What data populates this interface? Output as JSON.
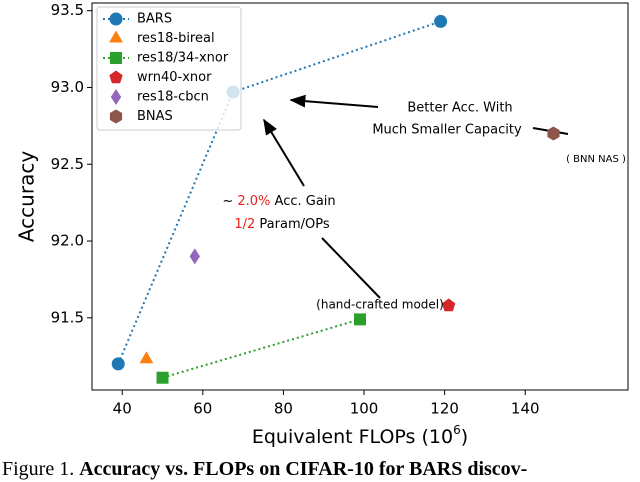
{
  "chart_data": {
    "type": "scatter",
    "x_label": [
      "Equivalent FLOPs (10",
      "6",
      ")"
    ],
    "y_label": "Accuracy",
    "xlim": [
      32.5,
      165.5
    ],
    "ylim": [
      91.03,
      93.55
    ],
    "xticks": [
      40,
      60,
      80,
      100,
      120,
      140
    ],
    "yticks": [
      91.5,
      {
        "value": 92,
        "label": "92.0"
      },
      92.5,
      {
        "value": 93,
        "label": "93.0"
      },
      93.5
    ],
    "legend": "upper left",
    "highlight_color": "#e8211b",
    "series": [
      {
        "name": "BARS",
        "color": "#1f77b4",
        "marker": "circle",
        "linestyle": "dotted",
        "x": [
          39,
          67.5,
          119
        ],
        "values": [
          91.2,
          92.97,
          93.43
        ]
      },
      {
        "name": "res18-bireal",
        "color": "#ff7f0e",
        "marker": "triangle",
        "x": [
          46
        ],
        "values": [
          91.23
        ]
      },
      {
        "name": "res18/34-xnor",
        "color": "#2ca02c",
        "marker": "square",
        "linestyle": "dotted",
        "x": [
          50,
          99
        ],
        "values": [
          91.11,
          91.49
        ]
      },
      {
        "name": "wrn40-xnor",
        "color": "#d62728",
        "marker": "pentagon",
        "x": [
          121
        ],
        "values": [
          91.58
        ]
      },
      {
        "name": "res18-cbcn",
        "color": "#9467bd",
        "marker": "diamond",
        "x": [
          58
        ],
        "values": [
          91.9
        ]
      },
      {
        "name": "BNAS",
        "color": "#8c564b",
        "marker": "hexagon",
        "x": [
          147
        ],
        "values": [
          92.7
        ]
      }
    ],
    "annotations": [
      "Better Acc. With",
      "Much Smaller Capacity",
      "( BNN NAS )",
      [
        "~ ",
        "2.0%",
        " Acc. Gain"
      ],
      [
        "1/2",
        " Param/OPs"
      ],
      "(hand-crafted model)"
    ]
  },
  "caption": [
    "Figure 1. ",
    "Accuracy vs. FLOPs on CIFAR-10 for BARS discov-"
  ]
}
